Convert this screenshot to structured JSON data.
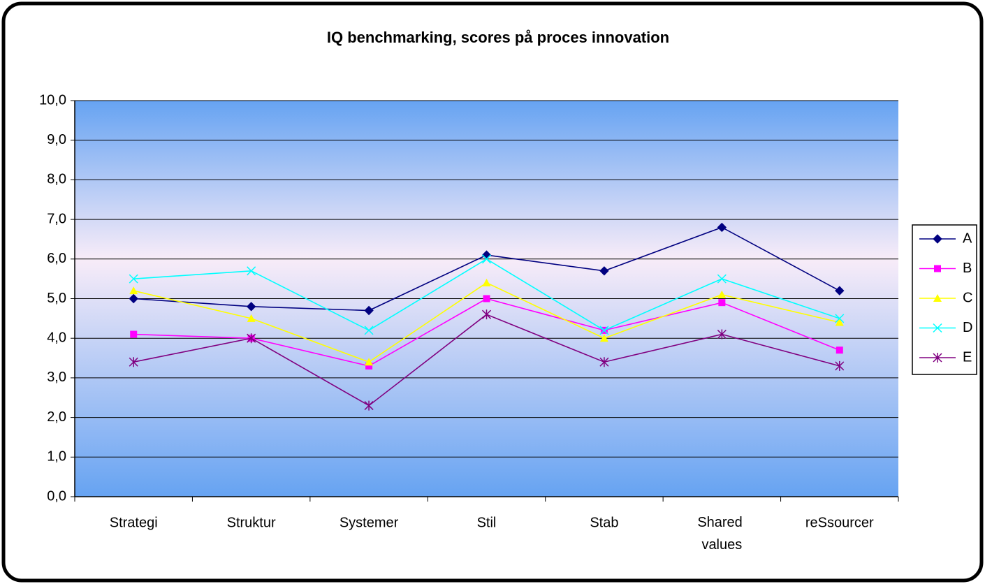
{
  "chart_data": {
    "type": "line",
    "title": "IQ benchmarking, scores på proces innovation",
    "categories": [
      "Strategi",
      "Struktur",
      "Systemer",
      "Stil",
      "Stab",
      "Shared values",
      "reSsourcer"
    ],
    "series": [
      {
        "name": "A",
        "color": "#000080",
        "marker": "diamond",
        "values": [
          5.0,
          4.8,
          4.7,
          6.1,
          5.7,
          6.8,
          5.2
        ]
      },
      {
        "name": "B",
        "color": "#ff00ff",
        "marker": "square",
        "values": [
          4.1,
          4.0,
          3.3,
          5.0,
          4.2,
          4.9,
          3.7
        ]
      },
      {
        "name": "C",
        "color": "#ffff00",
        "marker": "triangle",
        "values": [
          5.2,
          4.5,
          3.4,
          5.4,
          4.0,
          5.1,
          4.4
        ]
      },
      {
        "name": "D",
        "color": "#00ffff",
        "marker": "x",
        "values": [
          5.5,
          5.7,
          4.2,
          6.0,
          4.2,
          5.5,
          4.5
        ]
      },
      {
        "name": "E",
        "color": "#800080",
        "marker": "star",
        "values": [
          3.4,
          4.0,
          2.3,
          4.6,
          3.4,
          4.1,
          3.3
        ]
      }
    ],
    "ylim": [
      0,
      10
    ],
    "yticks": [
      {
        "value": 0,
        "label": "0,0"
      },
      {
        "value": 1,
        "label": "1,0"
      },
      {
        "value": 2,
        "label": "2,0"
      },
      {
        "value": 3,
        "label": "3,0"
      },
      {
        "value": 4,
        "label": "4,0"
      },
      {
        "value": 5,
        "label": "5,0"
      },
      {
        "value": 6,
        "label": "6,0"
      },
      {
        "value": 7,
        "label": "7,0"
      },
      {
        "value": 8,
        "label": "8,0"
      },
      {
        "value": 9,
        "label": "9,0"
      },
      {
        "value": 10,
        "label": "10,0"
      }
    ],
    "grid": true,
    "legend": "right"
  }
}
